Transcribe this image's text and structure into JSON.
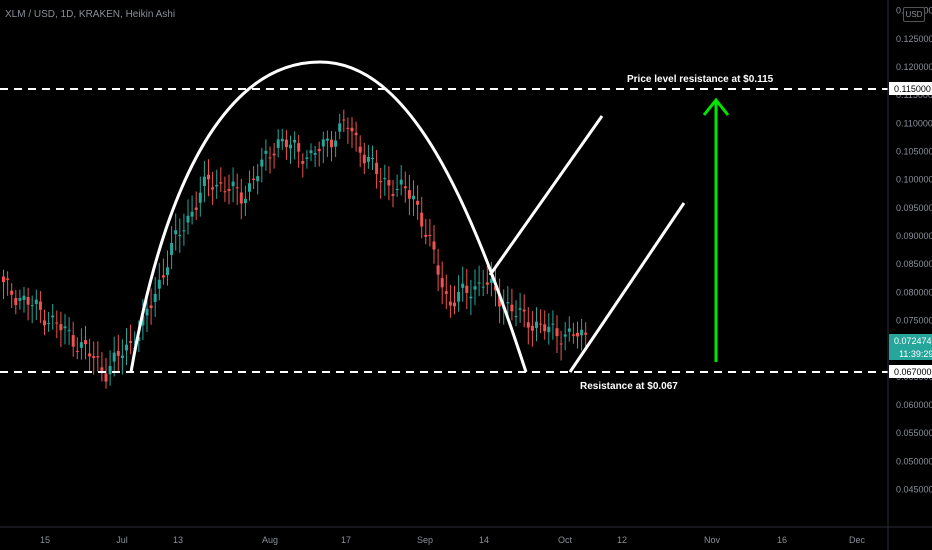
{
  "header": {
    "title": "XLM / USD, 1D, KRAKEN, Heikin Ashi",
    "currency_button": "USD"
  },
  "colors": {
    "up": "#26a69a",
    "down": "#ef5350",
    "drawing": "#ffffff",
    "arrow": "#00e600",
    "axis_text": "#8a8f98",
    "background": "#000000"
  },
  "price_tags": {
    "current_price": "0.072474",
    "countdown": "11:39:29",
    "level_price": "0.067000",
    "resistance_price": "0.115000"
  },
  "annotations": {
    "top_label": "Price level resistance at $0.115",
    "bottom_label": "Resistance at $0.067"
  },
  "chart_data": {
    "type": "candlestick",
    "title": "XLM / USD, 1D, KRAKEN, Heikin Ashi",
    "x_tick_labels": [
      "15",
      "Jul",
      "13",
      "Aug",
      "17",
      "Sep",
      "14",
      "Oct",
      "12",
      "Nov",
      "16",
      "Dec"
    ],
    "y_tick_labels": [
      "0.045000",
      "0.050000",
      "0.055000",
      "0.060000",
      "0.065000",
      "0.070000",
      "0.075000",
      "0.080000",
      "0.085000",
      "0.090000",
      "0.095000",
      "0.100000",
      "0.105000",
      "0.110000",
      "0.115000",
      "0.120000",
      "0.125000",
      "0.130000"
    ],
    "ylim": [
      0.041,
      0.131
    ],
    "horizontal_lines": [
      0.115,
      0.067
    ],
    "last_price": 0.072474,
    "approx_close_path": [
      {
        "x": "Jun 8",
        "close": 0.081
      },
      {
        "x": "Jun 15",
        "close": 0.077
      },
      {
        "x": "Jun 22",
        "close": 0.072
      },
      {
        "x": "Jul 1",
        "close": 0.066
      },
      {
        "x": "Jul 8",
        "close": 0.073
      },
      {
        "x": "Jul 13",
        "close": 0.089
      },
      {
        "x": "Jul 20",
        "close": 0.1
      },
      {
        "x": "Jul 27",
        "close": 0.097
      },
      {
        "x": "Aug 3",
        "close": 0.107
      },
      {
        "x": "Aug 10",
        "close": 0.104
      },
      {
        "x": "Aug 17",
        "close": 0.11
      },
      {
        "x": "Aug 24",
        "close": 0.1
      },
      {
        "x": "Sep 1",
        "close": 0.097
      },
      {
        "x": "Sep 7",
        "close": 0.078
      },
      {
        "x": "Sep 14",
        "close": 0.082
      },
      {
        "x": "Sep 21",
        "close": 0.076
      },
      {
        "x": "Sep 28",
        "close": 0.073
      },
      {
        "x": "Oct 5",
        "close": 0.072
      }
    ]
  }
}
